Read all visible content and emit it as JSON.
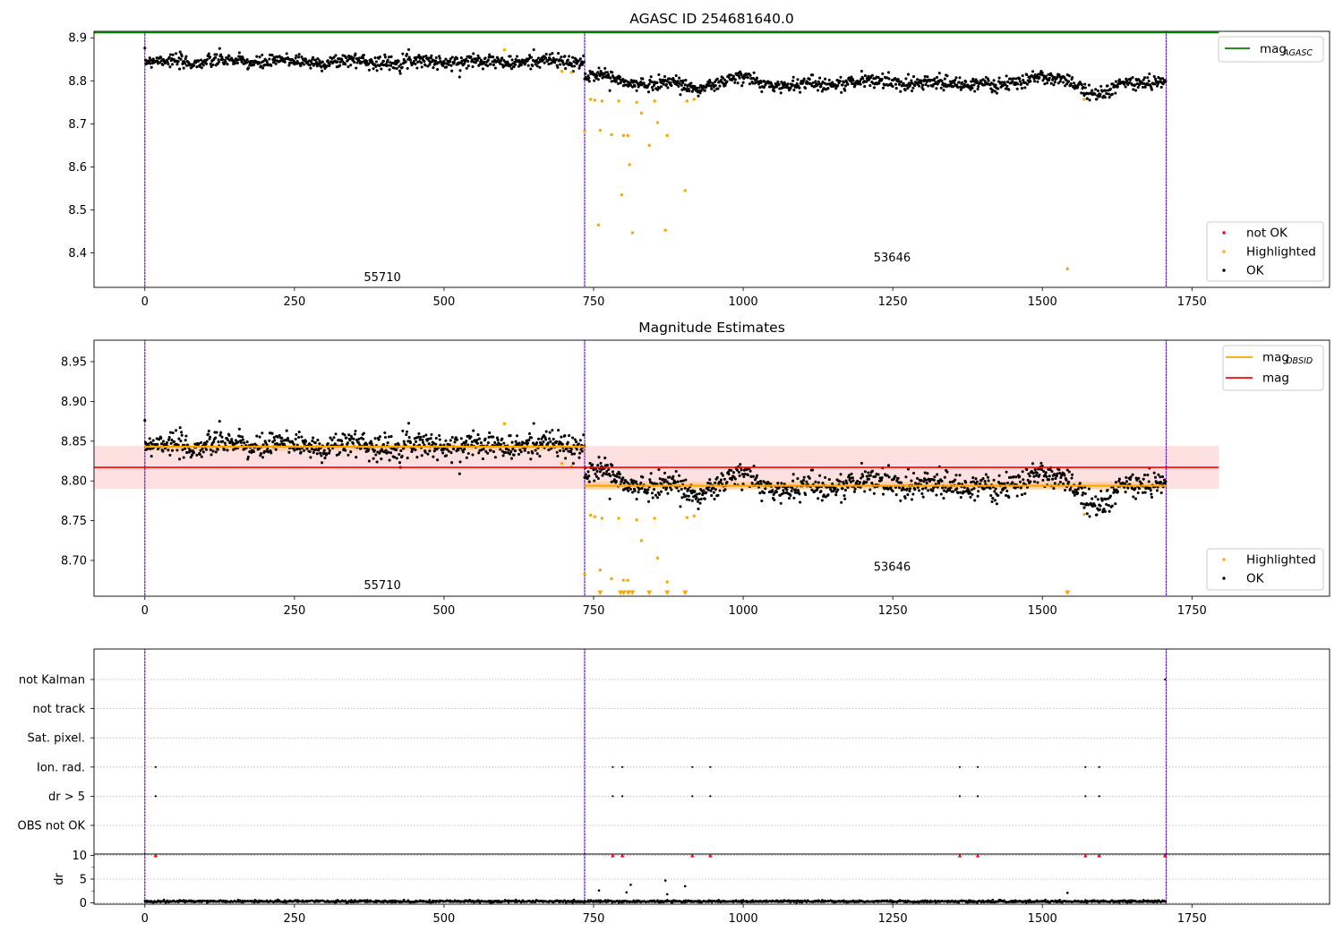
{
  "chart_data": [
    {
      "panel": "top",
      "type": "scatter",
      "title": "AGASC ID 254681640.0",
      "xlim": [
        -85,
        1980
      ],
      "ylim": [
        8.32,
        8.915
      ],
      "xticks": [
        0,
        250,
        500,
        750,
        1000,
        1250,
        1500,
        1750
      ],
      "xtick_labels": [
        "0",
        "250",
        "500",
        "750",
        "1000",
        "1250",
        "1500",
        "1750"
      ],
      "yticks": [
        8.4,
        8.5,
        8.6,
        8.7,
        8.8,
        8.9
      ],
      "ytick_labels": [
        "8.4",
        "8.5",
        "8.6",
        "8.7",
        "8.8",
        "8.9"
      ],
      "observation_boundaries": [
        0,
        735,
        1707
      ],
      "obsid_labels": [
        {
          "text": "55710",
          "x": 366,
          "y": 8.335
        },
        {
          "text": "53646",
          "x": 1218,
          "y": 8.38
        }
      ],
      "mag_agasc": 8.912,
      "mag_agasc_x_range": [
        -85,
        1795
      ],
      "segments": [
        {
          "x_range": [
            0,
            735
          ],
          "mean": 8.845,
          "noise": 0.008
        },
        {
          "x_range": [
            735,
            1707
          ],
          "mean": 8.795,
          "noise": 0.008,
          "wiggles": [
            {
              "x": 755,
              "dy": 0.02
            },
            {
              "x": 920,
              "dy": -0.01
            },
            {
              "x": 1000,
              "dy": 0.01
            },
            {
              "x": 1075,
              "dy": -0.008
            },
            {
              "x": 1230,
              "dy": 0.006
            },
            {
              "x": 1420,
              "dy": -0.008
            },
            {
              "x": 1490,
              "dy": 0.015
            },
            {
              "x": 1600,
              "dy": -0.025
            },
            {
              "x": 1690,
              "dy": 0.005
            }
          ]
        }
      ],
      "highlighted": [
        {
          "x": 601,
          "y": 8.872
        },
        {
          "x": 697,
          "y": 8.822
        },
        {
          "x": 713,
          "y": 8.82
        },
        {
          "x": 735,
          "y": 8.683
        },
        {
          "x": 745,
          "y": 8.757
        },
        {
          "x": 752,
          "y": 8.755
        },
        {
          "x": 758,
          "y": 8.465
        },
        {
          "x": 761,
          "y": 8.685
        },
        {
          "x": 764,
          "y": 8.753
        },
        {
          "x": 780,
          "y": 8.675
        },
        {
          "x": 792,
          "y": 8.753
        },
        {
          "x": 797,
          "y": 8.535
        },
        {
          "x": 800,
          "y": 8.673
        },
        {
          "x": 807,
          "y": 8.673
        },
        {
          "x": 810,
          "y": 8.605
        },
        {
          "x": 815,
          "y": 8.447
        },
        {
          "x": 822,
          "y": 8.75
        },
        {
          "x": 830,
          "y": 8.725
        },
        {
          "x": 843,
          "y": 8.65
        },
        {
          "x": 852,
          "y": 8.753
        },
        {
          "x": 857,
          "y": 8.703
        },
        {
          "x": 870,
          "y": 8.453
        },
        {
          "x": 873,
          "y": 8.673
        },
        {
          "x": 903,
          "y": 8.545
        },
        {
          "x": 906,
          "y": 8.753
        },
        {
          "x": 918,
          "y": 8.757
        },
        {
          "x": 1542,
          "y": 8.363
        },
        {
          "x": 1570,
          "y": 8.757
        }
      ],
      "legend_lines": [
        {
          "label": "mag",
          "sub": "AGASC",
          "color": "#008000"
        }
      ],
      "legend_points": [
        {
          "label": "not OK",
          "color": "#ff0000"
        },
        {
          "label": "Highlighted",
          "color": "#ffa500"
        },
        {
          "label": "OK",
          "color": "#000000"
        }
      ]
    },
    {
      "panel": "middle",
      "type": "scatter",
      "title": "Magnitude Estimates",
      "xlim": [
        -85,
        1980
      ],
      "ylim": [
        8.655,
        8.977
      ],
      "xticks": [
        0,
        250,
        500,
        750,
        1000,
        1250,
        1500,
        1750
      ],
      "xtick_labels": [
        "0",
        "250",
        "500",
        "750",
        "1000",
        "1250",
        "1500",
        "1750"
      ],
      "yticks": [
        8.7,
        8.75,
        8.8,
        8.85,
        8.9,
        8.95
      ],
      "ytick_labels": [
        "8.70",
        "8.75",
        "8.80",
        "8.85",
        "8.90",
        "8.95"
      ],
      "observation_boundaries": [
        0,
        735,
        1707
      ],
      "obsid_labels": [
        {
          "text": "55710",
          "x": 366,
          "y": 8.664
        },
        {
          "text": "53646",
          "x": 1218,
          "y": 8.687
        }
      ],
      "mag": 8.817,
      "mag_band": [
        8.79,
        8.844
      ],
      "mag_x_range": [
        -85,
        1795
      ],
      "mag_obsid": [
        {
          "x_range": [
            0,
            735
          ],
          "value": 8.843,
          "band": [
            8.838,
            8.848
          ]
        },
        {
          "x_range": [
            735,
            1707
          ],
          "value": 8.794,
          "band": [
            8.789,
            8.799
          ]
        }
      ],
      "segments": [
        {
          "x_range": [
            0,
            735
          ],
          "mean": 8.845,
          "noise": 0.008
        },
        {
          "x_range": [
            735,
            1707
          ],
          "mean": 8.795,
          "noise": 0.008,
          "wiggles": [
            {
              "x": 755,
              "dy": 0.02
            },
            {
              "x": 920,
              "dy": -0.01
            },
            {
              "x": 1000,
              "dy": 0.01
            },
            {
              "x": 1075,
              "dy": -0.008
            },
            {
              "x": 1230,
              "dy": 0.006
            },
            {
              "x": 1420,
              "dy": -0.008
            },
            {
              "x": 1490,
              "dy": 0.015
            },
            {
              "x": 1600,
              "dy": -0.025
            },
            {
              "x": 1690,
              "dy": 0.005
            }
          ]
        }
      ],
      "highlighted": [
        {
          "x": 601,
          "y": 8.872
        },
        {
          "x": 697,
          "y": 8.822
        },
        {
          "x": 713,
          "y": 8.818
        },
        {
          "x": 735,
          "y": 8.683
        },
        {
          "x": 745,
          "y": 8.757
        },
        {
          "x": 752,
          "y": 8.755
        },
        {
          "x": 761,
          "y": 8.688
        },
        {
          "x": 764,
          "y": 8.753
        },
        {
          "x": 780,
          "y": 8.677
        },
        {
          "x": 792,
          "y": 8.753
        },
        {
          "x": 800,
          "y": 8.675
        },
        {
          "x": 807,
          "y": 8.675
        },
        {
          "x": 822,
          "y": 8.751
        },
        {
          "x": 830,
          "y": 8.725
        },
        {
          "x": 852,
          "y": 8.753
        },
        {
          "x": 857,
          "y": 8.703
        },
        {
          "x": 873,
          "y": 8.673
        },
        {
          "x": 906,
          "y": 8.754
        },
        {
          "x": 918,
          "y": 8.756
        },
        {
          "x": 1570,
          "y": 8.758
        }
      ],
      "clipped_markers_x": [
        761,
        795,
        800,
        808,
        815,
        843,
        873,
        903,
        1542
      ],
      "legend_lines": [
        {
          "label": "mag",
          "sub": "OBSID",
          "color": "#ffa500"
        },
        {
          "label": "mag",
          "sub": "",
          "color": "#ff0000"
        }
      ],
      "legend_points": [
        {
          "label": "Highlighted",
          "color": "#ffa500"
        },
        {
          "label": "OK",
          "color": "#000000"
        }
      ]
    },
    {
      "panel": "flags",
      "type": "scatter",
      "xlim": [
        -85,
        1980
      ],
      "rows": [
        "not Kalman",
        "not track",
        "Sat. pixel.",
        "Ion. rad.",
        "dr > 5",
        "OBS not OK"
      ],
      "observation_boundaries": [
        0,
        735,
        1707
      ],
      "flag_points": {
        "Ion. rad.": [
          18,
          782,
          798,
          915,
          945,
          1362,
          1392,
          1572,
          1595
        ],
        "dr > 5": [
          18,
          782,
          798,
          915,
          945,
          1362,
          1392,
          1572,
          1595
        ],
        "not Kalman": [
          1705
        ]
      }
    },
    {
      "panel": "dr",
      "type": "scatter",
      "ylabel": "dr",
      "xlim": [
        -85,
        1980
      ],
      "ylim": [
        -0.3,
        10.3
      ],
      "xticks": [
        0,
        250,
        500,
        750,
        1000,
        1250,
        1500,
        1750
      ],
      "xtick_labels": [
        "0",
        "250",
        "500",
        "750",
        "1000",
        "1250",
        "1500",
        "1750"
      ],
      "yticks": [
        0,
        5,
        10
      ],
      "ytick_labels": [
        "0",
        "5",
        "10"
      ],
      "observation_boundaries": [
        0,
        735,
        1707
      ],
      "baseline": 0.3,
      "clipped_x": [
        18,
        782,
        798,
        915,
        945,
        1362,
        1392,
        1572,
        1595,
        1705
      ],
      "outliers": [
        {
          "x": 759,
          "y": 2.6
        },
        {
          "x": 805,
          "y": 2.2
        },
        {
          "x": 812,
          "y": 3.8
        },
        {
          "x": 870,
          "y": 4.7
        },
        {
          "x": 873,
          "y": 1.8
        },
        {
          "x": 903,
          "y": 3.5
        },
        {
          "x": 1542,
          "y": 2.1
        }
      ]
    }
  ]
}
